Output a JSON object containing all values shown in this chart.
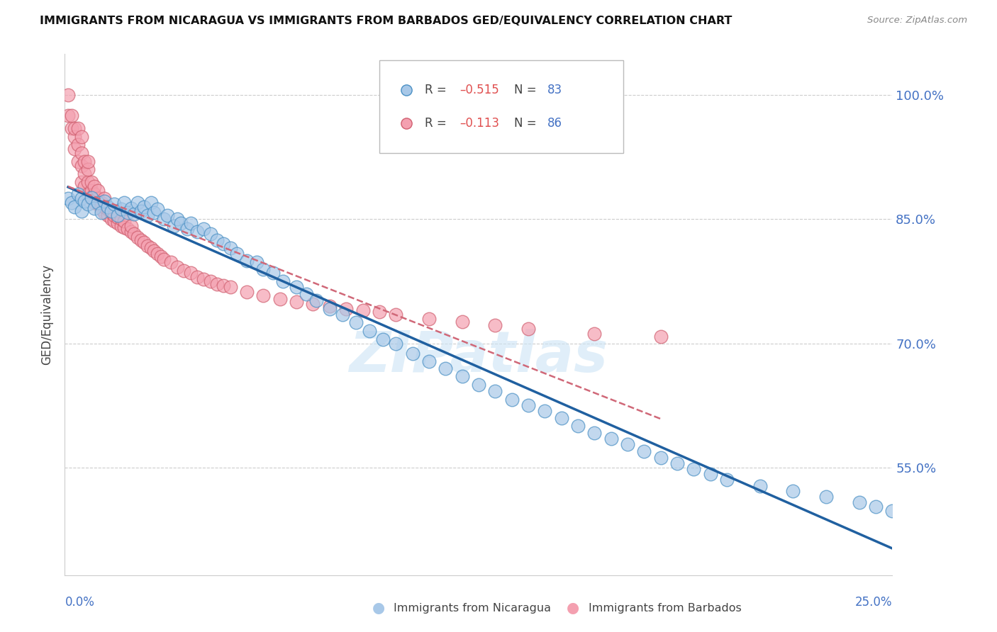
{
  "title": "IMMIGRANTS FROM NICARAGUA VS IMMIGRANTS FROM BARBADOS GED/EQUIVALENCY CORRELATION CHART",
  "source": "Source: ZipAtlas.com",
  "ylabel": "GED/Equivalency",
  "yticks": [
    0.55,
    0.7,
    0.85,
    1.0
  ],
  "ytick_labels": [
    "55.0%",
    "70.0%",
    "85.0%",
    "100.0%"
  ],
  "xlim": [
    0.0,
    0.25
  ],
  "ylim": [
    0.42,
    1.05
  ],
  "blue_color": "#a8c8e8",
  "blue_edge_color": "#4a90c4",
  "pink_color": "#f4a0b0",
  "pink_edge_color": "#d06070",
  "blue_line_color": "#2060a0",
  "pink_line_color": "#d06878",
  "watermark": "ZIPatlas",
  "blue_scatter_x": [
    0.001,
    0.002,
    0.003,
    0.004,
    0.005,
    0.005,
    0.006,
    0.007,
    0.008,
    0.009,
    0.01,
    0.011,
    0.012,
    0.013,
    0.014,
    0.015,
    0.016,
    0.017,
    0.018,
    0.019,
    0.02,
    0.021,
    0.022,
    0.023,
    0.024,
    0.025,
    0.026,
    0.027,
    0.028,
    0.03,
    0.031,
    0.033,
    0.034,
    0.035,
    0.037,
    0.038,
    0.04,
    0.042,
    0.044,
    0.046,
    0.048,
    0.05,
    0.052,
    0.055,
    0.058,
    0.06,
    0.063,
    0.066,
    0.07,
    0.073,
    0.076,
    0.08,
    0.084,
    0.088,
    0.092,
    0.096,
    0.1,
    0.105,
    0.11,
    0.115,
    0.12,
    0.125,
    0.13,
    0.135,
    0.14,
    0.145,
    0.15,
    0.155,
    0.16,
    0.165,
    0.17,
    0.175,
    0.18,
    0.185,
    0.19,
    0.195,
    0.2,
    0.21,
    0.22,
    0.23,
    0.24,
    0.245,
    0.25
  ],
  "blue_scatter_y": [
    0.875,
    0.87,
    0.865,
    0.88,
    0.875,
    0.86,
    0.872,
    0.868,
    0.876,
    0.863,
    0.87,
    0.858,
    0.872,
    0.865,
    0.86,
    0.868,
    0.855,
    0.862,
    0.87,
    0.858,
    0.863,
    0.856,
    0.87,
    0.86,
    0.865,
    0.855,
    0.87,
    0.858,
    0.862,
    0.85,
    0.855,
    0.842,
    0.85,
    0.845,
    0.838,
    0.845,
    0.835,
    0.838,
    0.832,
    0.825,
    0.82,
    0.815,
    0.808,
    0.8,
    0.798,
    0.79,
    0.785,
    0.775,
    0.768,
    0.76,
    0.752,
    0.742,
    0.735,
    0.725,
    0.715,
    0.705,
    0.7,
    0.688,
    0.678,
    0.67,
    0.66,
    0.65,
    0.642,
    0.632,
    0.625,
    0.618,
    0.61,
    0.6,
    0.592,
    0.585,
    0.578,
    0.57,
    0.562,
    0.555,
    0.548,
    0.542,
    0.535,
    0.528,
    0.522,
    0.515,
    0.508,
    0.503,
    0.498
  ],
  "pink_scatter_x": [
    0.001,
    0.001,
    0.002,
    0.002,
    0.003,
    0.003,
    0.003,
    0.004,
    0.004,
    0.004,
    0.005,
    0.005,
    0.005,
    0.005,
    0.006,
    0.006,
    0.006,
    0.007,
    0.007,
    0.007,
    0.007,
    0.008,
    0.008,
    0.008,
    0.009,
    0.009,
    0.009,
    0.01,
    0.01,
    0.01,
    0.011,
    0.011,
    0.012,
    0.012,
    0.012,
    0.013,
    0.013,
    0.014,
    0.014,
    0.015,
    0.015,
    0.016,
    0.016,
    0.017,
    0.017,
    0.018,
    0.018,
    0.019,
    0.02,
    0.02,
    0.021,
    0.022,
    0.023,
    0.024,
    0.025,
    0.026,
    0.027,
    0.028,
    0.029,
    0.03,
    0.032,
    0.034,
    0.036,
    0.038,
    0.04,
    0.042,
    0.044,
    0.046,
    0.048,
    0.05,
    0.055,
    0.06,
    0.065,
    0.07,
    0.075,
    0.08,
    0.085,
    0.09,
    0.095,
    0.1,
    0.11,
    0.12,
    0.13,
    0.14,
    0.16,
    0.18
  ],
  "pink_scatter_y": [
    0.975,
    1.0,
    0.96,
    0.975,
    0.95,
    0.935,
    0.96,
    0.92,
    0.94,
    0.96,
    0.895,
    0.915,
    0.93,
    0.95,
    0.89,
    0.905,
    0.92,
    0.88,
    0.895,
    0.91,
    0.92,
    0.875,
    0.885,
    0.895,
    0.87,
    0.88,
    0.89,
    0.868,
    0.875,
    0.885,
    0.862,
    0.87,
    0.858,
    0.865,
    0.875,
    0.855,
    0.862,
    0.85,
    0.858,
    0.848,
    0.855,
    0.845,
    0.852,
    0.842,
    0.85,
    0.84,
    0.848,
    0.838,
    0.835,
    0.842,
    0.832,
    0.828,
    0.825,
    0.822,
    0.818,
    0.815,
    0.812,
    0.808,
    0.805,
    0.802,
    0.798,
    0.792,
    0.788,
    0.785,
    0.78,
    0.778,
    0.775,
    0.772,
    0.77,
    0.768,
    0.762,
    0.758,
    0.754,
    0.75,
    0.748,
    0.745,
    0.742,
    0.74,
    0.738,
    0.735,
    0.73,
    0.726,
    0.722,
    0.718,
    0.712,
    0.708
  ]
}
